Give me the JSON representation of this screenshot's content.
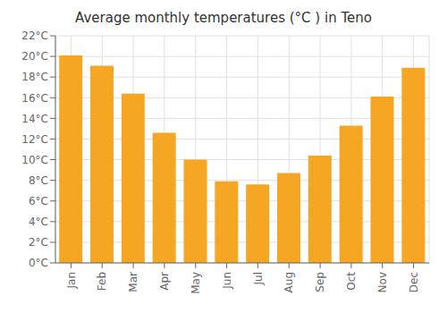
{
  "chart_data": {
    "type": "bar",
    "title": "Average monthly temperatures (°C ) in Teno",
    "categories": [
      "Jan",
      "Feb",
      "Mar",
      "Apr",
      "May",
      "Jun",
      "Jul",
      "Aug",
      "Sep",
      "Oct",
      "Nov",
      "Dec"
    ],
    "values": [
      20.1,
      19.1,
      16.4,
      12.6,
      10.0,
      7.9,
      7.6,
      8.7,
      10.4,
      13.3,
      16.1,
      18.9
    ],
    "color": "#F5A623",
    "ylim": [
      0,
      22
    ],
    "yticks": [
      {
        "value": 0,
        "label": "0°C"
      },
      {
        "value": 2,
        "label": "2°C"
      },
      {
        "value": 4,
        "label": "4°C"
      },
      {
        "value": 6,
        "label": "6°C"
      },
      {
        "value": 8,
        "label": "8°C"
      },
      {
        "value": 10,
        "label": "10°C"
      },
      {
        "value": 12,
        "label": "12°C"
      },
      {
        "value": 14,
        "label": "14°C"
      },
      {
        "value": 16,
        "label": "16°C"
      },
      {
        "value": 18,
        "label": "18°C"
      },
      {
        "value": 20,
        "label": "20°C"
      },
      {
        "value": 22,
        "label": "22°C"
      }
    ],
    "grid": true
  }
}
